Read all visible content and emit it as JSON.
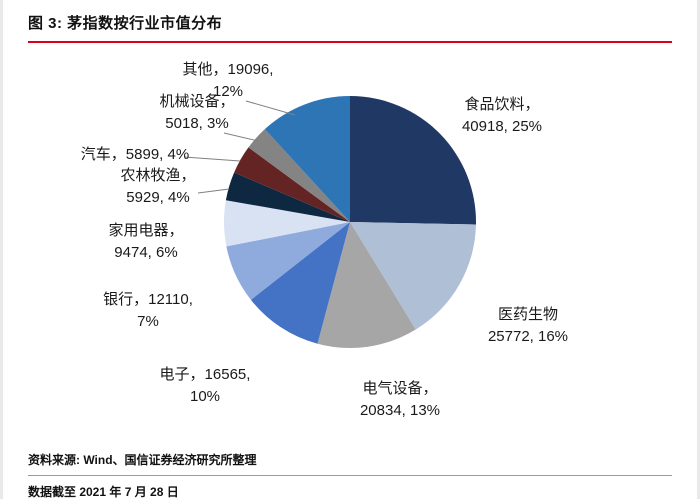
{
  "header": {
    "title": "图 3: 茅指数按行业市值分布"
  },
  "footer": {
    "source": "资料来源: Wind、国信证券经济研究所整理",
    "as_of": "数据截至 2021 年 7 月 28 日"
  },
  "colors": {
    "accent_red": "#D9001B",
    "footer_rule_gray": "#9a9a9a",
    "leader_gray": "#808080",
    "label_text": "#1a1a1a"
  },
  "chart_data": {
    "type": "pie",
    "title": "茅指数按行业市值分布",
    "direction": "clockwise",
    "start_angle_deg": 0,
    "legend_position": "none",
    "labels_style": "outside with leader lines",
    "segments": [
      {
        "label": "食品饮料",
        "value": 40918,
        "pct": "25%",
        "color": "#1F3864",
        "display": [
          "食品饮料，",
          "40918, 25%"
        ]
      },
      {
        "label": "医药生物",
        "value": 25772,
        "pct": "16%",
        "color": "#AFBFD6",
        "display": [
          "医药生物",
          "25772, 16%"
        ]
      },
      {
        "label": "电气设备",
        "value": 20834,
        "pct": "13%",
        "color": "#A6A6A6",
        "display": [
          "电气设备，",
          "20834, 13%"
        ]
      },
      {
        "label": "电子",
        "value": 16565,
        "pct": "10%",
        "color": "#4472C4",
        "display": [
          "电子，16565,",
          "10%"
        ]
      },
      {
        "label": "银行",
        "value": 12110,
        "pct": "7%",
        "color": "#8FAADC",
        "display": [
          "银行，12110,",
          "7%"
        ]
      },
      {
        "label": "家用电器",
        "value": 9474,
        "pct": "6%",
        "color": "#D9E2F3",
        "display": [
          "家用电器，",
          "9474, 6%"
        ]
      },
      {
        "label": "农林牧渔",
        "value": 5929,
        "pct": "4%",
        "color": "#0E2841",
        "display": [
          "农林牧渔，",
          "5929, 4%"
        ]
      },
      {
        "label": "汽车",
        "value": 5899,
        "pct": "4%",
        "color": "#632423",
        "display": [
          "汽车，5899, 4%"
        ]
      },
      {
        "label": "机械设备",
        "value": 5018,
        "pct": "3%",
        "color": "#848484",
        "display": [
          "机械设备，",
          "5018, 3%"
        ]
      },
      {
        "label": "其他",
        "value": 19096,
        "pct": "12%",
        "color": "#2E75B6",
        "display": [
          "其他，19096,",
          "12%"
        ]
      }
    ]
  }
}
